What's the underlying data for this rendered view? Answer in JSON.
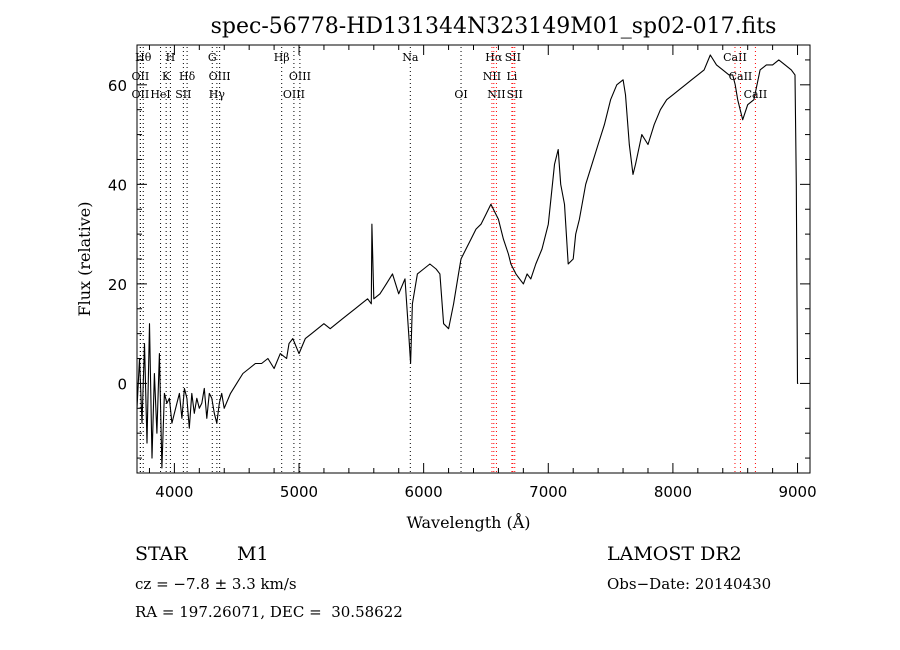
{
  "chart_data": {
    "type": "line",
    "title": "spec-56778-HD131344N323149M01_sp02-017.fits",
    "xlabel": "Wavelength (Å)",
    "ylabel": "Flux (relative)",
    "xlim": [
      3700,
      9100
    ],
    "ylim": [
      -18,
      68
    ],
    "x_ticks": [
      4000,
      5000,
      6000,
      7000,
      8000,
      9000
    ],
    "y_ticks": [
      0,
      20,
      40,
      60
    ],
    "grid": false,
    "series": [
      {
        "x": [
          3700,
          3720,
          3740,
          3760,
          3780,
          3800,
          3820,
          3840,
          3860,
          3880,
          3900,
          3920,
          3940,
          3960,
          3980,
          4000,
          4020,
          4040,
          4060,
          4080,
          4100,
          4120,
          4140,
          4160,
          4180,
          4200,
          4220,
          4240,
          4260,
          4280,
          4300,
          4320,
          4340,
          4360,
          4380,
          4400,
          4450,
          4500,
          4550,
          4600,
          4650,
          4700,
          4750,
          4800,
          4850,
          4900,
          4920,
          4950,
          5000,
          5050,
          5100,
          5150,
          5200,
          5250,
          5300,
          5350,
          5400,
          5450,
          5500,
          5550,
          5580,
          5585,
          5600,
          5650,
          5700,
          5750,
          5800,
          5850,
          5880,
          5895,
          5910,
          5950,
          6000,
          6050,
          6100,
          6130,
          6160,
          6200,
          6240,
          6280,
          6300,
          6340,
          6380,
          6420,
          6460,
          6500,
          6540,
          6560,
          6580,
          6600,
          6640,
          6680,
          6700,
          6720,
          6740,
          6770,
          6800,
          6830,
          6860,
          6900,
          6950,
          7000,
          7050,
          7080,
          7100,
          7130,
          7160,
          7200,
          7220,
          7250,
          7300,
          7350,
          7400,
          7450,
          7500,
          7550,
          7600,
          7620,
          7650,
          7680,
          7700,
          7750,
          7800,
          7850,
          7900,
          7950,
          8000,
          8050,
          8100,
          8150,
          8200,
          8250,
          8300,
          8350,
          8400,
          8450,
          8480,
          8500,
          8520,
          8540,
          8560,
          8600,
          8650,
          8700,
          8750,
          8800,
          8850,
          8900,
          8950,
          8980,
          8990,
          9000,
          9005
        ],
        "y": [
          -5,
          5,
          -8,
          8,
          -12,
          12,
          -15,
          2,
          -10,
          6,
          -17,
          -2,
          -4,
          -3,
          -8,
          -6,
          -4,
          -2,
          -7,
          -1,
          -3,
          -9,
          -2,
          -6,
          -3,
          -5,
          -4,
          -1,
          -7,
          -2,
          -3,
          -6,
          -8,
          -4,
          -2,
          -5,
          -2,
          0,
          2,
          3,
          4,
          4,
          5,
          3,
          6,
          5,
          8,
          9,
          6,
          9,
          10,
          11,
          12,
          11,
          12,
          13,
          14,
          15,
          16,
          17,
          16,
          32,
          17,
          18,
          20,
          22,
          18,
          21,
          10,
          4,
          16,
          22,
          23,
          24,
          23,
          22,
          12,
          11,
          16,
          22,
          25,
          27,
          29,
          31,
          32,
          34,
          36,
          35,
          34,
          33,
          29,
          26,
          24,
          23,
          22,
          21,
          20,
          22,
          21,
          24,
          27,
          32,
          44,
          47,
          40,
          36,
          24,
          25,
          30,
          33,
          40,
          44,
          48,
          52,
          57,
          60,
          61,
          58,
          48,
          42,
          44,
          50,
          48,
          52,
          55,
          57,
          58,
          59,
          60,
          61,
          62,
          63,
          66,
          64,
          63,
          62,
          62,
          60,
          57,
          55,
          53,
          56,
          57,
          63,
          64,
          64,
          65,
          64,
          63,
          62,
          40,
          0,
          0
        ]
      }
    ],
    "lines": [
      {
        "wave": 3750,
        "label": "Hθ",
        "row": 0,
        "color": "#000000"
      },
      {
        "wave": 3727,
        "label": "OII",
        "row": 1,
        "color": "#000000"
      },
      {
        "wave": 3727,
        "label": "OII",
        "row": 2,
        "color": "#000000"
      },
      {
        "wave": 3968,
        "label": "H",
        "row": 0,
        "color": "#000000"
      },
      {
        "wave": 3934,
        "label": "K",
        "row": 1,
        "color": "#000000"
      },
      {
        "wave": 3889,
        "label": "HeI",
        "row": 2,
        "color": "#000000"
      },
      {
        "wave": 4102,
        "label": "Hδ",
        "row": 1,
        "color": "#000000"
      },
      {
        "wave": 4072,
        "label": "SII",
        "row": 2,
        "color": "#000000"
      },
      {
        "wave": 4304,
        "label": "G",
        "row": 0,
        "color": "#000000"
      },
      {
        "wave": 4363,
        "label": "OIII",
        "row": 1,
        "color": "#000000"
      },
      {
        "wave": 4341,
        "label": "Hγ",
        "row": 2,
        "color": "#000000"
      },
      {
        "wave": 4861,
        "label": "Hβ",
        "row": 0,
        "color": "#000000"
      },
      {
        "wave": 5007,
        "label": "OIII",
        "row": 1,
        "color": "#000000"
      },
      {
        "wave": 4959,
        "label": "OIII",
        "row": 2,
        "color": "#000000"
      },
      {
        "wave": 5893,
        "label": "Na",
        "row": 0,
        "color": "#000000"
      },
      {
        "wave": 6300,
        "label": "OI",
        "row": 2,
        "color": "#000000"
      },
      {
        "wave": 6563,
        "label": "Hα",
        "row": 0,
        "color": "#ff0000"
      },
      {
        "wave": 6716,
        "label": "SII",
        "row": 0,
        "color": "#ff0000"
      },
      {
        "wave": 6548,
        "label": "NII",
        "row": 1,
        "color": "#ff0000"
      },
      {
        "wave": 6708,
        "label": "Li",
        "row": 1,
        "color": "#ff0000"
      },
      {
        "wave": 6584,
        "label": "NII",
        "row": 2,
        "color": "#ff0000"
      },
      {
        "wave": 6731,
        "label": "SII",
        "row": 2,
        "color": "#ff0000"
      },
      {
        "wave": 8498,
        "label": "CaII",
        "row": 0,
        "color": "#ff0000"
      },
      {
        "wave": 8542,
        "label": "CaII",
        "row": 1,
        "color": "#ff0000"
      },
      {
        "wave": 8662,
        "label": "CaII",
        "row": 2,
        "color": "#ff0000"
      }
    ]
  },
  "info": {
    "class": "STAR",
    "subclass": "M1",
    "survey": "LAMOST DR2",
    "cz": "cz = −7.8 ± 3.3 km/s",
    "obs_date": "Obs−Date: 20140430",
    "coords": "RA = 197.26071, DEC =  30.58622"
  }
}
